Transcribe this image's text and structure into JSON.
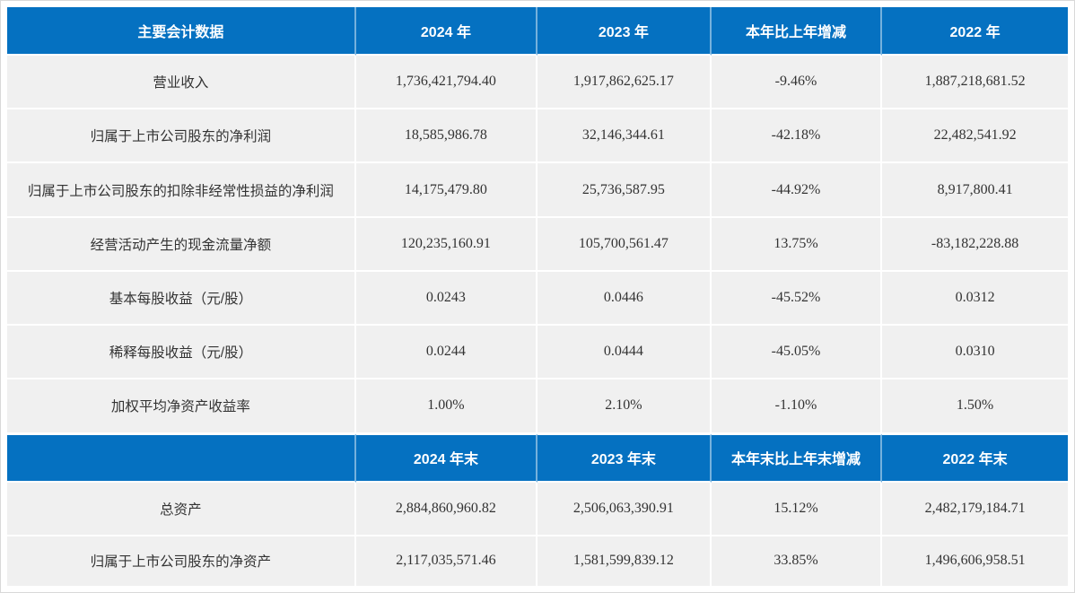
{
  "colors": {
    "header_bg": "#0571C1",
    "header_text": "#FFFFFF",
    "row_bg": "#F0F0F0",
    "cell_text": "#333333",
    "divider": "#FFFFFF"
  },
  "table": {
    "section1": {
      "header": {
        "col_label": "主要会计数据",
        "col_2024": "2024 年",
        "col_2023": "2023 年",
        "col_change": "本年比上年增减",
        "col_2022": "2022 年"
      },
      "rows": [
        {
          "label": "营业收入",
          "y2024": "1,736,421,794.40",
          "y2023": "1,917,862,625.17",
          "change": "-9.46%",
          "y2022": "1,887,218,681.52"
        },
        {
          "label": "归属于上市公司股东的净利润",
          "y2024": "18,585,986.78",
          "y2023": "32,146,344.61",
          "change": "-42.18%",
          "y2022": "22,482,541.92"
        },
        {
          "label": "归属于上市公司股东的扣除非经常性损益的净利润",
          "y2024": "14,175,479.80",
          "y2023": "25,736,587.95",
          "change": "-44.92%",
          "y2022": "8,917,800.41"
        },
        {
          "label": "经营活动产生的现金流量净额",
          "y2024": "120,235,160.91",
          "y2023": "105,700,561.47",
          "change": "13.75%",
          "y2022": "-83,182,228.88"
        },
        {
          "label": "基本每股收益（元/股）",
          "y2024": "0.0243",
          "y2023": "0.0446",
          "change": "-45.52%",
          "y2022": "0.0312"
        },
        {
          "label": "稀释每股收益（元/股）",
          "y2024": "0.0244",
          "y2023": "0.0444",
          "change": "-45.05%",
          "y2022": "0.0310"
        },
        {
          "label": "加权平均净资产收益率",
          "y2024": "1.00%",
          "y2023": "2.10%",
          "change": "-1.10%",
          "y2022": "1.50%"
        }
      ]
    },
    "section2": {
      "header": {
        "col_label": "",
        "col_2024": "2024 年末",
        "col_2023": "2023 年末",
        "col_change": "本年末比上年末增减",
        "col_2022": "2022 年末"
      },
      "rows": [
        {
          "label": "总资产",
          "y2024": "2,884,860,960.82",
          "y2023": "2,506,063,390.91",
          "change": "15.12%",
          "y2022": "2,482,179,184.71"
        },
        {
          "label": "归属于上市公司股东的净资产",
          "y2024": "2,117,035,571.46",
          "y2023": "1,581,599,839.12",
          "change": "33.85%",
          "y2022": "1,496,606,958.51"
        }
      ]
    }
  }
}
